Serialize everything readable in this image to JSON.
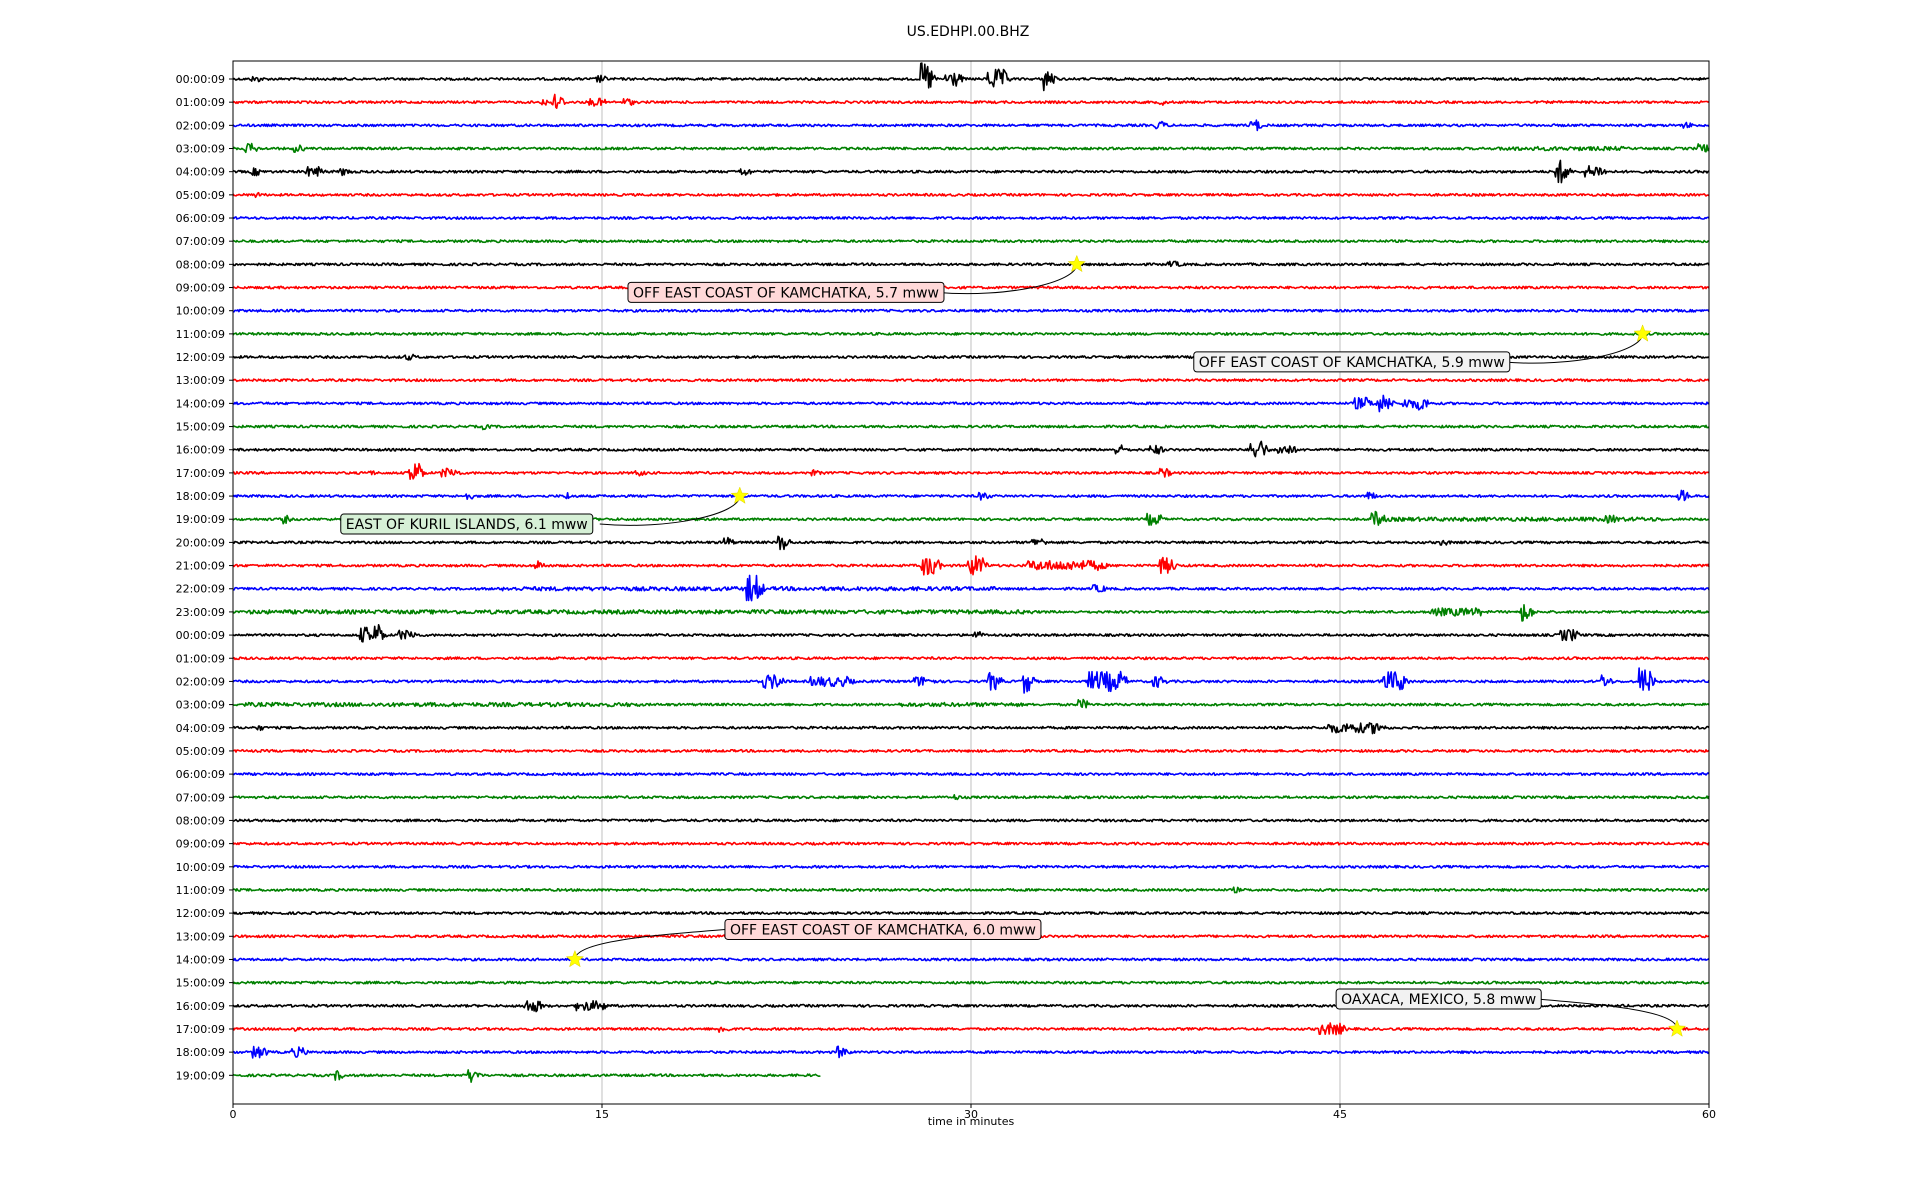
{
  "chart_data": {
    "type": "line",
    "title": "US.EDHPI.00.BHZ",
    "xlabel": "time in minutes",
    "ylabel": "",
    "xlim": [
      0,
      60
    ],
    "x_ticks": [
      0,
      15,
      30,
      45,
      60
    ],
    "grid": "vertical",
    "trace_colors": [
      "#000000",
      "#ff0000",
      "#0000ff",
      "#008000"
    ],
    "last_trace_end_minute": 23.9,
    "rows": [
      {
        "label": "00:00:09",
        "color": "#000000",
        "bursts": [
          [
            0.8,
            0.25,
            3
          ],
          [
            14.8,
            0.2,
            4
          ],
          [
            28.0,
            0.25,
            16
          ],
          [
            29.0,
            0.4,
            8
          ],
          [
            30.7,
            0.6,
            10
          ],
          [
            33.0,
            0.15,
            12
          ]
        ]
      },
      {
        "label": "01:00:09",
        "color": "#ff0000",
        "bursts": [
          [
            12.6,
            0.5,
            4
          ],
          [
            13.1,
            0.1,
            10
          ],
          [
            14.5,
            0.5,
            4
          ],
          [
            15.9,
            0.2,
            4
          ],
          [
            37.7,
            0.1,
            3
          ]
        ]
      },
      {
        "label": "02:00:09",
        "color": "#0000ff",
        "bursts": [
          [
            37.5,
            0.3,
            4
          ],
          [
            41.4,
            0.2,
            6
          ],
          [
            59.0,
            0.2,
            3
          ]
        ]
      },
      {
        "label": "03:00:09",
        "color": "#008000",
        "bursts": [
          [
            0.5,
            0.3,
            5
          ],
          [
            2.5,
            0.2,
            4
          ],
          [
            51.5,
            5.0,
            2
          ],
          [
            59.6,
            0.2,
            5
          ]
        ]
      },
      {
        "label": "04:00:09",
        "color": "#000000",
        "bursts": [
          [
            0.8,
            0.2,
            4
          ],
          [
            3.0,
            0.5,
            5
          ],
          [
            4.4,
            0.2,
            4
          ],
          [
            20.6,
            0.3,
            4
          ],
          [
            53.8,
            0.3,
            12
          ],
          [
            55.0,
            0.6,
            6
          ]
        ]
      },
      {
        "label": "05:00:09",
        "color": "#ff0000",
        "bursts": [
          [
            0.9,
            0.1,
            3
          ]
        ]
      },
      {
        "label": "06:00:09",
        "color": "#0000ff",
        "bursts": []
      },
      {
        "label": "07:00:09",
        "color": "#008000",
        "bursts": []
      },
      {
        "label": "08:00:09",
        "color": "#000000",
        "bursts": [
          [
            38.0,
            0.4,
            3
          ]
        ]
      },
      {
        "label": "09:00:09",
        "color": "#ff0000",
        "bursts": []
      },
      {
        "label": "10:00:09",
        "color": "#0000ff",
        "bursts": []
      },
      {
        "label": "11:00:09",
        "color": "#008000",
        "bursts": []
      },
      {
        "label": "12:00:09",
        "color": "#000000",
        "bursts": [
          [
            7.0,
            0.3,
            3
          ]
        ]
      },
      {
        "label": "13:00:09",
        "color": "#ff0000",
        "bursts": []
      },
      {
        "label": "14:00:09",
        "color": "#0000ff",
        "bursts": [
          [
            45.6,
            0.5,
            6
          ],
          [
            46.5,
            0.4,
            9
          ],
          [
            47.6,
            0.5,
            5
          ],
          [
            48.2,
            0.2,
            7
          ]
        ]
      },
      {
        "label": "15:00:09",
        "color": "#008000",
        "bursts": [
          [
            10.2,
            0.1,
            3
          ]
        ]
      },
      {
        "label": "16:00:09",
        "color": "#000000",
        "bursts": [
          [
            35.9,
            0.2,
            5
          ],
          [
            37.3,
            0.3,
            5
          ],
          [
            41.4,
            0.4,
            10
          ],
          [
            42.5,
            0.5,
            5
          ]
        ]
      },
      {
        "label": "17:00:09",
        "color": "#ff0000",
        "bursts": [
          [
            5.5,
            0.1,
            3
          ],
          [
            7.2,
            0.3,
            12
          ],
          [
            8.5,
            0.5,
            5
          ],
          [
            16.4,
            0.2,
            3
          ],
          [
            23.5,
            0.2,
            3
          ],
          [
            37.7,
            0.2,
            5
          ]
        ]
      },
      {
        "label": "18:00:09",
        "color": "#0000ff",
        "bursts": [
          [
            9.5,
            0.1,
            4
          ],
          [
            13.5,
            0.1,
            4
          ],
          [
            30.3,
            0.3,
            4
          ],
          [
            46.0,
            0.3,
            4
          ],
          [
            58.8,
            0.2,
            6
          ]
        ]
      },
      {
        "label": "19:00:09",
        "color": "#008000",
        "bursts": [
          [
            2.0,
            0.1,
            5
          ],
          [
            4.8,
            0.1,
            4
          ],
          [
            8.5,
            0.6,
            5
          ],
          [
            37.2,
            0.4,
            6
          ],
          [
            46.3,
            0.3,
            8
          ],
          [
            47.0,
            11.0,
            2
          ],
          [
            55.8,
            0.4,
            4
          ]
        ]
      },
      {
        "label": "20:00:09",
        "color": "#000000",
        "bursts": [
          [
            20.0,
            0.1,
            6
          ],
          [
            22.2,
            0.2,
            8
          ],
          [
            32.5,
            0.4,
            4
          ],
          [
            49.1,
            0.2,
            3
          ]
        ]
      },
      {
        "label": "21:00:09",
        "color": "#ff0000",
        "bursts": [
          [
            12.3,
            0.2,
            5
          ],
          [
            28.0,
            0.5,
            10
          ],
          [
            29.9,
            0.5,
            10
          ],
          [
            32.3,
            3.0,
            5
          ],
          [
            37.7,
            0.4,
            8
          ]
        ]
      },
      {
        "label": "22:00:09",
        "color": "#0000ff",
        "bursts": [
          [
            11.0,
            10.0,
            2
          ],
          [
            20.9,
            0.4,
            14
          ],
          [
            22.0,
            9.0,
            2
          ],
          [
            35.0,
            0.3,
            4
          ]
        ]
      },
      {
        "label": "23:00:09",
        "color": "#008000",
        "bursts": [
          [
            0.5,
            32.0,
            2
          ],
          [
            48.7,
            2.0,
            4
          ],
          [
            52.4,
            0.2,
            10
          ]
        ]
      },
      {
        "label": "00:00:09",
        "color": "#000000",
        "bursts": [
          [
            5.2,
            0.4,
            8
          ],
          [
            5.8,
            0.1,
            12
          ],
          [
            6.7,
            0.6,
            5
          ],
          [
            30.1,
            0.2,
            4
          ],
          [
            54.0,
            0.5,
            6
          ]
        ]
      },
      {
        "label": "01:00:09",
        "color": "#ff0000",
        "bursts": []
      },
      {
        "label": "02:00:09",
        "color": "#0000ff",
        "bursts": [
          [
            21.6,
            0.6,
            7
          ],
          [
            23.5,
            1.5,
            5
          ],
          [
            27.7,
            0.6,
            5
          ],
          [
            30.7,
            0.3,
            9
          ],
          [
            32.1,
            0.2,
            12
          ],
          [
            34.8,
            1.3,
            10
          ],
          [
            37.4,
            0.3,
            6
          ],
          [
            46.7,
            0.8,
            10
          ],
          [
            55.6,
            0.2,
            7
          ],
          [
            57.2,
            0.3,
            14
          ]
        ]
      },
      {
        "label": "03:00:09",
        "color": "#008000",
        "bursts": [
          [
            0.5,
            16.0,
            2
          ],
          [
            27.0,
            5.0,
            2
          ],
          [
            34.4,
            0.2,
            5
          ]
        ]
      },
      {
        "label": "04:00:09",
        "color": "#000000",
        "bursts": [
          [
            1.0,
            0.1,
            3
          ],
          [
            44.5,
            2.0,
            5
          ],
          [
            46.3,
            0.3,
            6
          ]
        ]
      },
      {
        "label": "05:00:09",
        "color": "#ff0000",
        "bursts": []
      },
      {
        "label": "06:00:09",
        "color": "#0000ff",
        "bursts": []
      },
      {
        "label": "07:00:09",
        "color": "#008000",
        "bursts": [
          [
            29.3,
            0.1,
            3
          ]
        ]
      },
      {
        "label": "08:00:09",
        "color": "#000000",
        "bursts": []
      },
      {
        "label": "09:00:09",
        "color": "#ff0000",
        "bursts": []
      },
      {
        "label": "10:00:09",
        "color": "#0000ff",
        "bursts": []
      },
      {
        "label": "11:00:09",
        "color": "#008000",
        "bursts": [
          [
            40.7,
            0.1,
            3
          ]
        ]
      },
      {
        "label": "12:00:09",
        "color": "#000000",
        "bursts": []
      },
      {
        "label": "13:00:09",
        "color": "#ff0000",
        "bursts": []
      },
      {
        "label": "14:00:09",
        "color": "#0000ff",
        "bursts": []
      },
      {
        "label": "15:00:09",
        "color": "#008000",
        "bursts": []
      },
      {
        "label": "16:00:09",
        "color": "#000000",
        "bursts": [
          [
            11.8,
            0.6,
            6
          ],
          [
            14.0,
            1.0,
            5
          ]
        ]
      },
      {
        "label": "17:00:09",
        "color": "#ff0000",
        "bursts": [
          [
            2.5,
            0.1,
            3
          ],
          [
            19.8,
            0.2,
            4
          ],
          [
            44.2,
            0.8,
            6
          ]
        ]
      },
      {
        "label": "18:00:09",
        "color": "#0000ff",
        "bursts": [
          [
            0.8,
            0.4,
            6
          ],
          [
            2.4,
            0.4,
            5
          ],
          [
            24.6,
            0.2,
            6
          ]
        ]
      },
      {
        "label": "19:00:09",
        "color": "#008000",
        "bursts": [
          [
            4.2,
            0.1,
            5
          ],
          [
            9.6,
            0.2,
            7
          ]
        ]
      }
    ],
    "events": [
      {
        "label": "OFF EAST COAST OF KAMCHATKA, 5.7 mww",
        "row": 8,
        "minute": 34.3,
        "bg": "#ffd9d9"
      },
      {
        "label": "OFF EAST COAST OF KAMCHATKA, 5.9 mww",
        "row": 11,
        "minute": 57.3,
        "bg": "#f2f2f2"
      },
      {
        "label": "EAST OF KURIL ISLANDS, 6.1 mww",
        "row": 18,
        "minute": 20.6,
        "bg": "#d6f0d6"
      },
      {
        "label": "OFF EAST COAST OF KAMCHATKA, 6.0 mww",
        "row": 38,
        "minute": 13.9,
        "bg": "#ffd9d9"
      },
      {
        "label": "OAXACA, MEXICO, 5.8 mww",
        "row": 41,
        "minute": 58.7,
        "bg": "#f2f2f2"
      }
    ]
  }
}
